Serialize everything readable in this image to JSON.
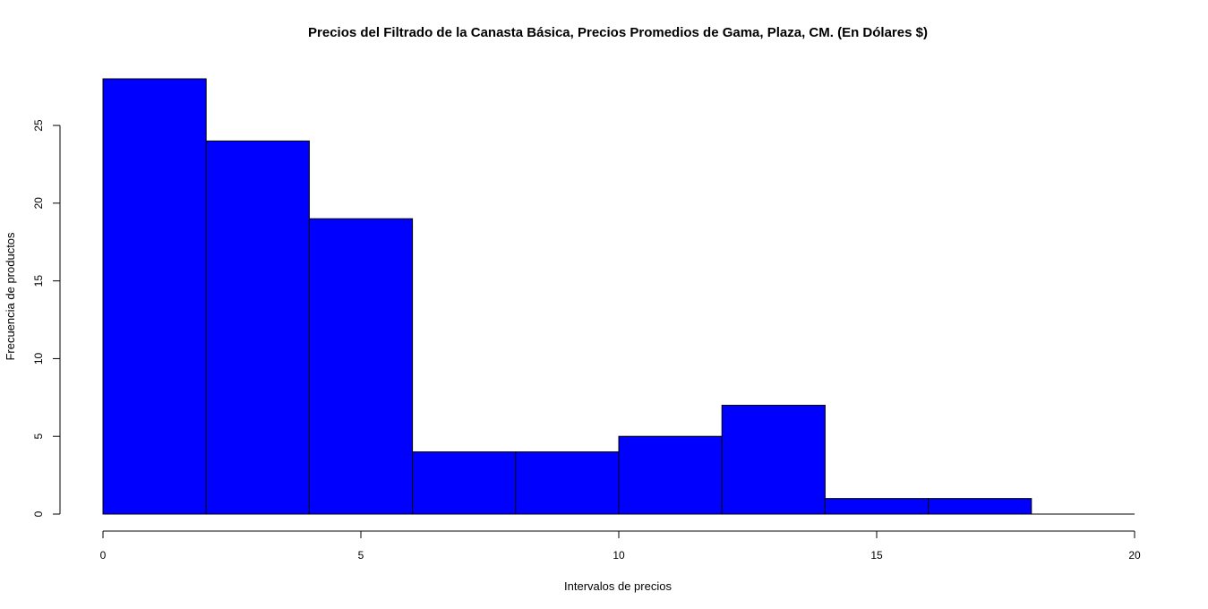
{
  "chart_data": {
    "type": "bar",
    "subtype": "histogram",
    "title": "Precios del Filtrado de la Canasta Básica, Precios Promedios de Gama, Plaza, CM. (En Dólares $)",
    "xlabel": "Intervalos de precios",
    "ylabel": "Frecuencia de productos",
    "bins": [
      {
        "from": 0,
        "to": 2,
        "count": 28
      },
      {
        "from": 2,
        "to": 4,
        "count": 24
      },
      {
        "from": 4,
        "to": 6,
        "count": 19
      },
      {
        "from": 6,
        "to": 8,
        "count": 4
      },
      {
        "from": 8,
        "to": 10,
        "count": 4
      },
      {
        "from": 10,
        "to": 12,
        "count": 5
      },
      {
        "from": 12,
        "to": 14,
        "count": 7
      },
      {
        "from": 14,
        "to": 16,
        "count": 1
      },
      {
        "from": 16,
        "to": 18,
        "count": 1
      },
      {
        "from": 18,
        "to": 20,
        "count": 0
      }
    ],
    "xlim": [
      0,
      20
    ],
    "ylim": [
      0,
      28
    ],
    "xticks": [
      0,
      5,
      10,
      15,
      20
    ],
    "yticks": [
      0,
      5,
      10,
      15,
      20,
      25
    ],
    "bar_color": "#0000ff",
    "edge_color": "#000000",
    "grid": false,
    "legend": "none"
  }
}
